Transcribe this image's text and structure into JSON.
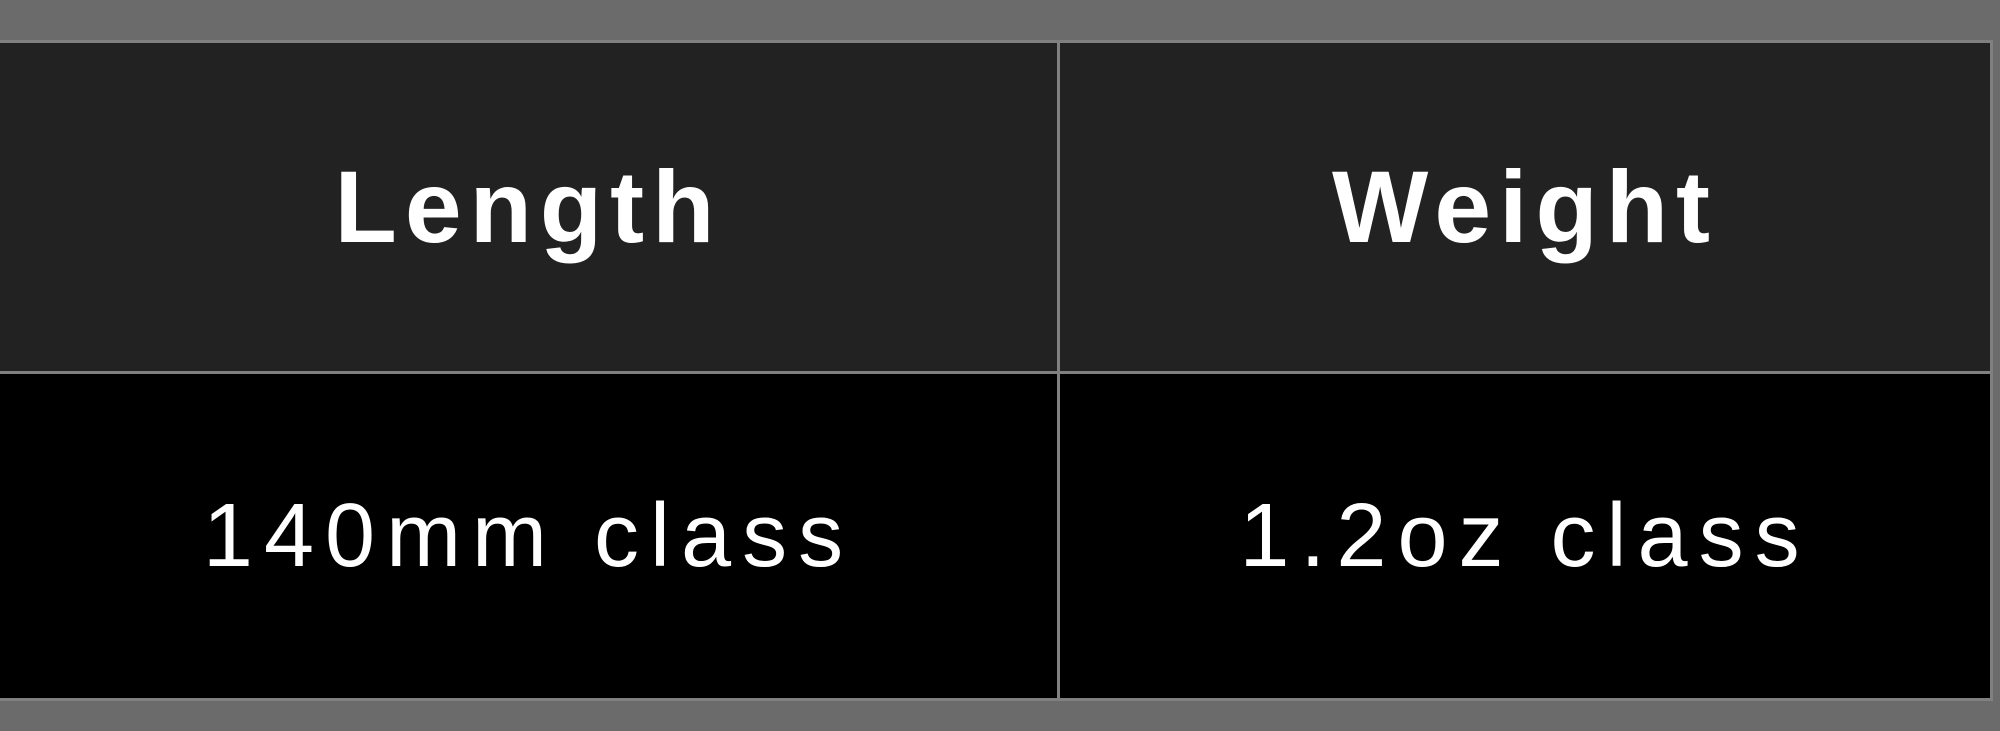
{
  "table": {
    "headers": [
      "Length",
      "Weight"
    ],
    "rows": [
      [
        "140mm class",
        "1.2oz class"
      ]
    ]
  },
  "colors": {
    "background": "#6b6b6b",
    "header_bg": "#222222",
    "cell_bg": "#000000",
    "border": "#808080",
    "text": "#ffffff"
  }
}
